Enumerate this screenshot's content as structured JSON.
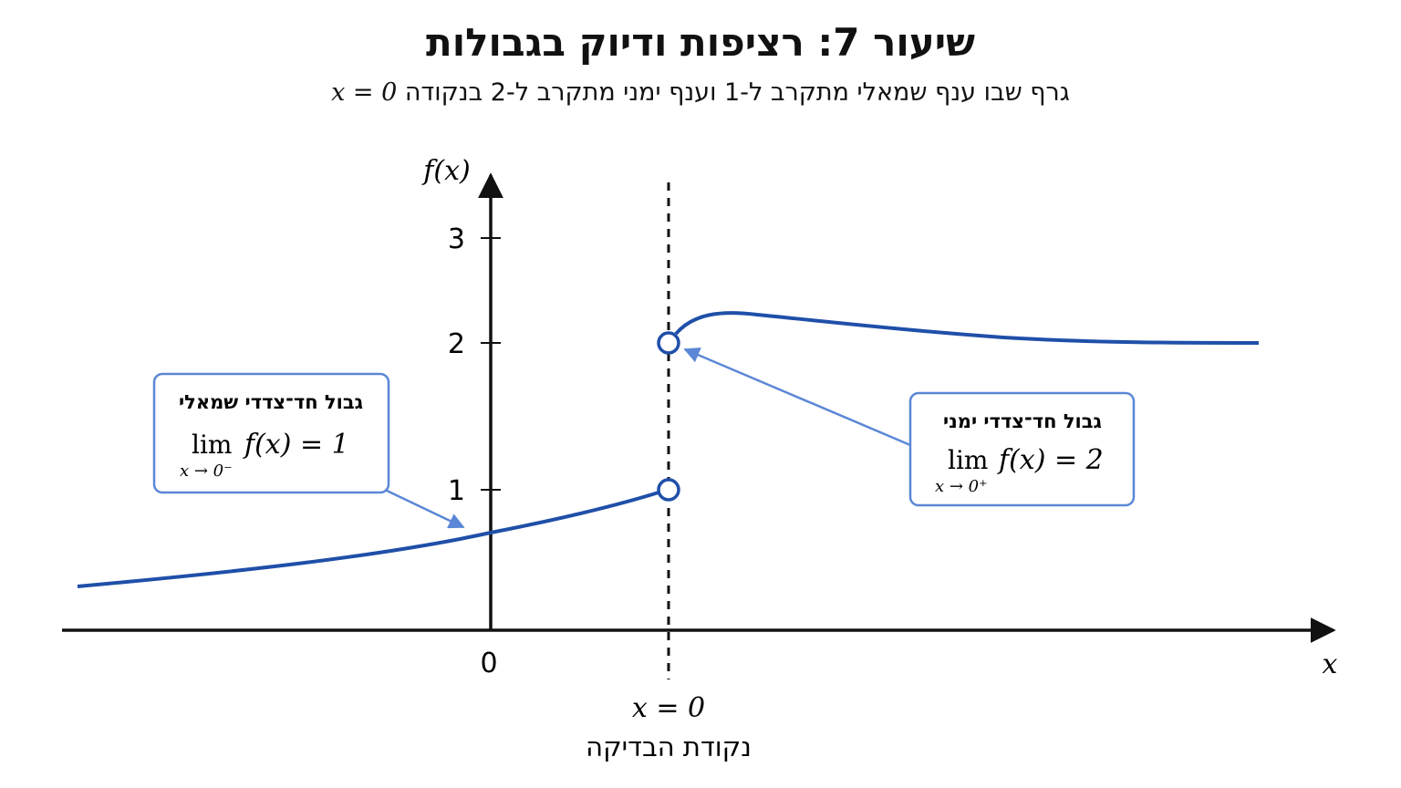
{
  "title": "שיעור 7: רציפות ודיוק בגבולות",
  "subtitle": {
    "text": "גרף שבו ענף שמאלי מתקרב ל-1 וענף ימני מתקרב ל-2 בנקודה",
    "math": "x = 0"
  },
  "axes": {
    "y_label": "f(x)",
    "x_label": "x",
    "y_ticks": [
      "1",
      "2",
      "3"
    ],
    "origin_label": "0"
  },
  "check_point": {
    "math": "x = 0",
    "label": "נקודת הבדיקה"
  },
  "left_callout": {
    "heading": "גבול חד־צדדי שמאלי",
    "lim": "lim",
    "expr": "f(x) = 1",
    "sub": "x → 0⁻"
  },
  "right_callout": {
    "heading": "גבול חד־צדדי ימני",
    "lim": "lim",
    "expr": "f(x) = 2",
    "sub": "x → 0⁺"
  },
  "colors": {
    "curve": "#1f4fa8",
    "callout_border": "#5b87d6",
    "arrow": "#5b87d6",
    "axis": "#111111"
  },
  "chart_data": {
    "type": "line",
    "series": [
      {
        "values": [
          [
            -1.0,
            0.29
          ],
          [
            -0.5,
            0.5
          ],
          [
            0,
            0.71
          ],
          [
            0.5,
            0.86
          ],
          [
            1.0,
            1.0
          ]
        ],
        "endpoint": "open",
        "approaches": 1
      },
      {
        "values": [
          [
            1.0,
            2.0
          ],
          [
            1.4,
            2.19
          ],
          [
            2.5,
            2.15
          ],
          [
            4.5,
            2.05
          ],
          [
            7.5,
            2.0
          ]
        ],
        "endpoint": "open",
        "approaches": 2
      }
    ],
    "ylim": [
      0,
      3.4
    ],
    "grid": false
  }
}
